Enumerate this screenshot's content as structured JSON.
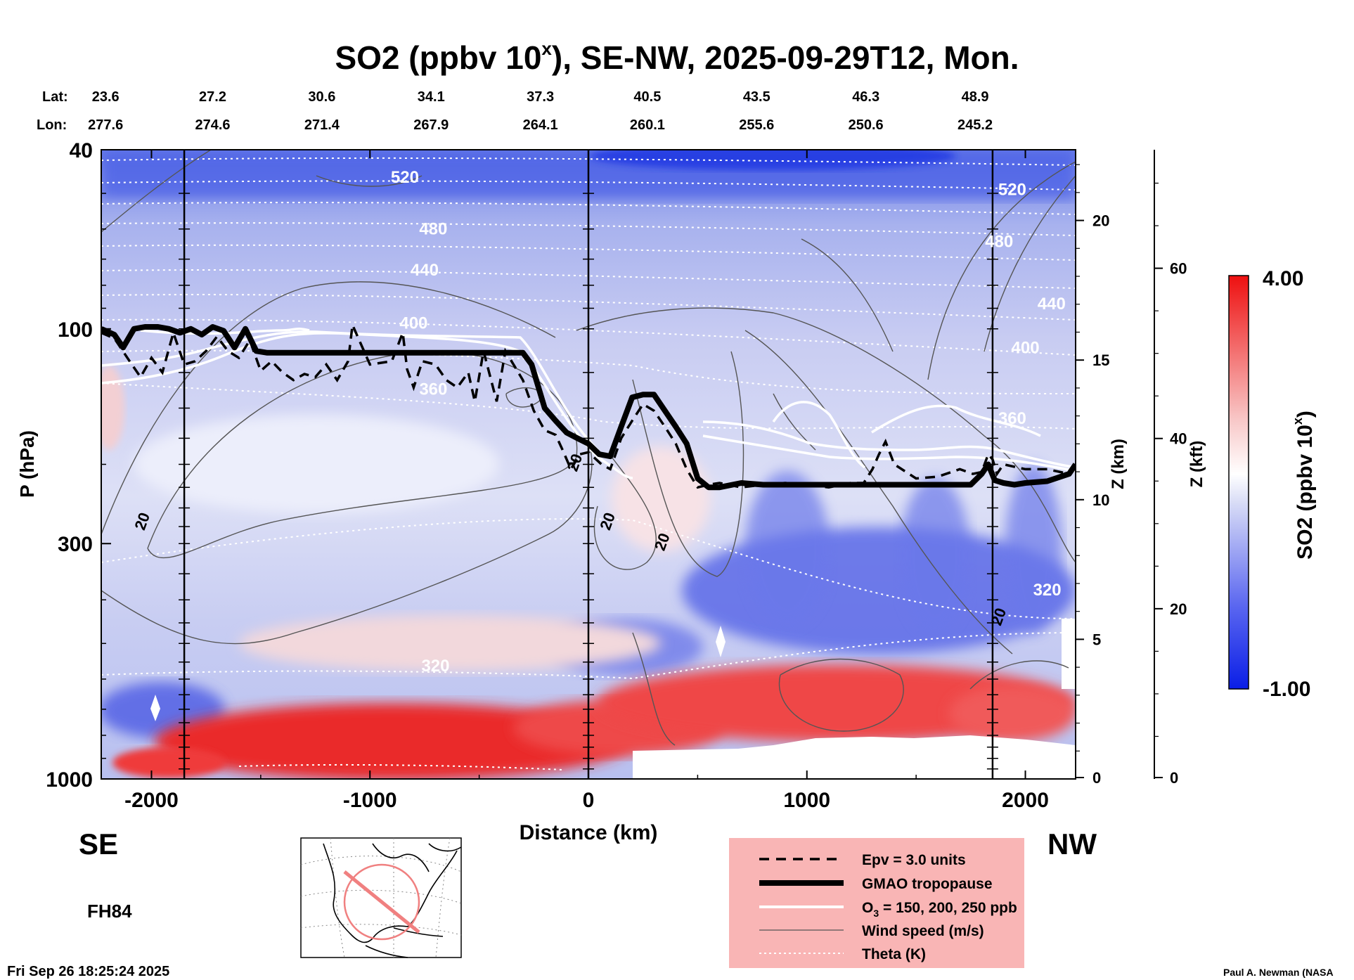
{
  "chart_data": {
    "type": "heatmap",
    "title": "SO2 (ppbv 10",
    "title_sup": "x",
    "title_rest": "), SE-NW, 2025-09-29T12, Mon.",
    "xlabel": "Distance (km)",
    "ylabel": "P (hPa)",
    "right_axis1_label": "Z (km)",
    "right_axis2_label": "Z (kft)",
    "colorbar_label": "SO2 (ppbv 10",
    "colorbar_label_sup": "x",
    "colorbar_label_end": ")",
    "colorbar_max": "4.00",
    "colorbar_min": "-1.00",
    "xlim": [
      -2230,
      2230
    ],
    "ylim_hpa": [
      1000,
      40
    ],
    "y_scale": "log",
    "x_ticks": [
      -2000,
      -1000,
      0,
      1000,
      2000
    ],
    "x_tick_labels": [
      "-2000",
      "-1000",
      "0",
      "1000",
      "2000"
    ],
    "y_ticks": [
      40,
      100,
      300,
      1000
    ],
    "y_tick_labels": [
      "40",
      "100",
      "300",
      "1000"
    ],
    "z_km_ticks": [
      "0",
      "5",
      "10",
      "15",
      "20"
    ],
    "z_kft_ticks": [
      "0",
      "20",
      "40",
      "60"
    ],
    "lat_label": "Lat:",
    "lon_label": "Lon:",
    "lats": [
      "23.6",
      "27.2",
      "30.6",
      "34.1",
      "37.3",
      "40.5",
      "43.5",
      "46.3",
      "48.9"
    ],
    "lons": [
      "277.6",
      "274.6",
      "271.4",
      "267.9",
      "264.1",
      "260.1",
      "255.6",
      "250.6",
      "245.2"
    ],
    "lat_lon_distance_km": [
      -2210,
      -1720,
      -1220,
      -720,
      -220,
      270,
      770,
      1270,
      1770
    ],
    "vertical_marker_km": [
      -1850,
      0,
      1850
    ],
    "theta_levels": [
      {
        "label": "520",
        "km": -840,
        "p": 46
      },
      {
        "label": "480",
        "km": -710,
        "p": 60
      },
      {
        "label": "440",
        "km": -750,
        "p": 74
      },
      {
        "label": "400",
        "km": -800,
        "p": 97
      },
      {
        "label": "360",
        "km": -710,
        "p": 136
      },
      {
        "label": "320",
        "km": -700,
        "p": 560
      },
      {
        "label": "520",
        "km": 1940,
        "p": 49
      },
      {
        "label": "480",
        "km": 1880,
        "p": 64
      },
      {
        "label": "440",
        "km": 2120,
        "p": 88
      },
      {
        "label": "400",
        "km": 2000,
        "p": 110
      },
      {
        "label": "360",
        "km": 1940,
        "p": 158
      },
      {
        "label": "320",
        "km": 2100,
        "p": 380
      }
    ],
    "wind_labels": [
      {
        "label": "20",
        "km": -2020,
        "p": 270
      },
      {
        "label": "20",
        "km": -40,
        "p": 200
      },
      {
        "label": "20",
        "km": 110,
        "p": 270
      },
      {
        "label": "20",
        "km": 360,
        "p": 300
      },
      {
        "label": "20",
        "km": 1900,
        "p": 440
      }
    ],
    "tropopause_gmao": {
      "x": [
        -2230,
        -2170,
        -2130,
        -2080,
        -2030,
        -1970,
        -1920,
        -1870,
        -1820,
        -1770,
        -1720,
        -1670,
        -1620,
        -1570,
        -1520,
        -1470,
        -1400,
        -1300,
        -1200,
        -1100,
        -1000,
        -900,
        -800,
        -700,
        -600,
        -500,
        -400,
        -300,
        -260,
        -200,
        -150,
        -100,
        -50,
        0,
        50,
        100,
        150,
        200,
        250,
        300,
        350,
        400,
        450,
        500,
        550,
        600,
        700,
        800,
        900,
        1000,
        1100,
        1200,
        1300,
        1400,
        1500,
        1600,
        1700,
        1750,
        1800,
        1830,
        1860,
        1900,
        1950,
        2000,
        2100,
        2200,
        2230
      ],
      "p": [
        100,
        103,
        110,
        100,
        99,
        99,
        100,
        102,
        100,
        103,
        99,
        101,
        110,
        100,
        112,
        113,
        113,
        113,
        113,
        113,
        113,
        113,
        113,
        113,
        113,
        113,
        113,
        113,
        120,
        150,
        160,
        170,
        175,
        180,
        190,
        192,
        165,
        142,
        140,
        140,
        152,
        165,
        180,
        215,
        225,
        225,
        220,
        222,
        222,
        222,
        222,
        222,
        222,
        222,
        222,
        222,
        222,
        222,
        210,
        200,
        217,
        220,
        222,
        220,
        218,
        210,
        200
      ]
    },
    "tropopause_epv": {
      "x": [
        -2230,
        -2170,
        -2100,
        -2050,
        -2000,
        -1950,
        -1900,
        -1850,
        -1800,
        -1750,
        -1700,
        -1650,
        -1600,
        -1550,
        -1500,
        -1450,
        -1400,
        -1350,
        -1300,
        -1250,
        -1200,
        -1150,
        -1100,
        -1080,
        -1000,
        -900,
        -850,
        -830,
        -800,
        -760,
        -700,
        -650,
        -600,
        -550,
        -520,
        -480,
        -420,
        -380,
        -300,
        -250,
        -200,
        -150,
        -120,
        -80,
        -40,
        0,
        60,
        100,
        150,
        200,
        250,
        300,
        350,
        400,
        450,
        500,
        550,
        600,
        700,
        800,
        900,
        1000,
        1100,
        1200,
        1260,
        1300,
        1330,
        1360,
        1400,
        1500,
        1600,
        1700,
        1760,
        1800,
        1830,
        1850,
        1870,
        1900,
        2000,
        2100,
        2200,
        2230
      ],
      "p": [
        102,
        105,
        118,
        128,
        116,
        125,
        102,
        120,
        118,
        112,
        104,
        112,
        116,
        106,
        124,
        118,
        125,
        130,
        126,
        128,
        120,
        130,
        118,
        98,
        120,
        118,
        102,
        123,
        135,
        118,
        120,
        130,
        135,
        125,
        145,
        112,
        145,
        112,
        130,
        152,
        168,
        172,
        185,
        205,
        190,
        188,
        200,
        205,
        175,
        160,
        147,
        152,
        165,
        180,
        205,
        225,
        222,
        220,
        225,
        222,
        220,
        222,
        225,
        220,
        220,
        205,
        190,
        178,
        200,
        215,
        213,
        205,
        210,
        208,
        190,
        195,
        210,
        200,
        205,
        205,
        210,
        200
      ]
    },
    "legend": {
      "epv": "Epv = 3.0 units",
      "gmao": "GMAO tropopause",
      "o3_prefix": "O",
      "o3_sub": "3",
      "o3_suffix": " = 150, 200, 250 ppb",
      "wind": "Wind speed (m/s)",
      "theta": "Theta (K)"
    },
    "se_label": "SE",
    "nw_label": "NW",
    "forecast_hour": "FH84",
    "timestamp": "Fri Sep 26 18:25:24 2025",
    "credit": "Paul A. Newman (NASA"
  }
}
